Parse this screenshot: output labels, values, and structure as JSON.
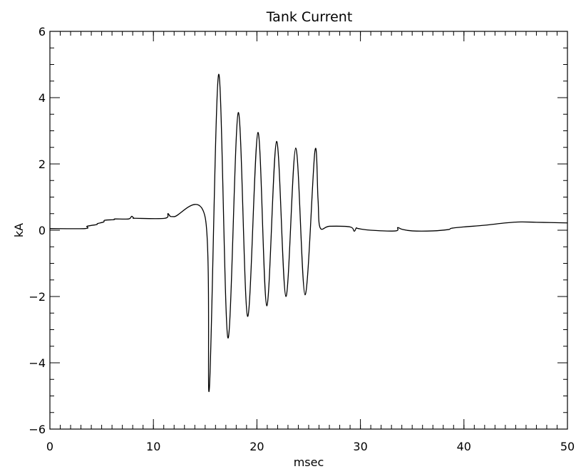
{
  "chart_data": {
    "type": "line",
    "title": "Tank Current",
    "xlabel": "msec",
    "ylabel": "kA",
    "xlim": [
      0,
      50
    ],
    "ylim": [
      -6,
      6
    ],
    "x_ticks": [
      0,
      10,
      20,
      30,
      40,
      50
    ],
    "x_tick_labels": [
      "0",
      "10",
      "20",
      "30",
      "40",
      "50"
    ],
    "y_ticks": [
      -6,
      -4,
      -2,
      0,
      2,
      4,
      6
    ],
    "y_tick_labels": [
      "−6",
      "−4",
      "−2",
      "0",
      "2",
      "4",
      "6"
    ],
    "x_minor_step": 1,
    "y_minor_step": 0.5,
    "grid": false,
    "legend": "none",
    "line_color": "#000000",
    "series": [
      {
        "x": [
          0,
          3.4,
          3.6,
          4.5,
          4.6,
          5.2,
          5.3,
          6.2,
          6.3,
          7.6,
          7.9,
          8.1,
          8.3,
          11.1,
          11.4,
          11.6,
          12.0,
          15.0,
          15.4,
          16.3,
          17.2,
          18.2,
          19.1,
          20.1,
          20.95,
          21.9,
          22.8,
          23.75,
          24.65,
          25.6,
          25.9,
          26.1,
          27.0,
          29.0,
          29.4,
          29.6,
          29.8,
          31.0,
          33.4,
          33.6,
          34.0,
          35.0,
          37.0,
          38.5,
          38.8,
          40.0,
          42.0,
          44.0,
          45.5,
          47.0,
          50.0
        ],
        "y": [
          0.05,
          0.05,
          0.12,
          0.17,
          0.2,
          0.25,
          0.3,
          0.32,
          0.34,
          0.34,
          0.42,
          0.37,
          0.36,
          0.36,
          0.5,
          0.43,
          0.41,
          0.39,
          -4.8,
          4.7,
          -3.25,
          3.55,
          -2.6,
          2.95,
          -2.28,
          2.68,
          -2.0,
          2.48,
          -1.95,
          2.38,
          0.95,
          0.08,
          0.12,
          0.1,
          -0.03,
          0.07,
          0.05,
          0.0,
          -0.02,
          0.08,
          0.03,
          -0.02,
          -0.02,
          0.02,
          0.06,
          0.1,
          0.15,
          0.22,
          0.25,
          0.24,
          0.22
        ],
        "interpolation": "smooth"
      }
    ]
  }
}
